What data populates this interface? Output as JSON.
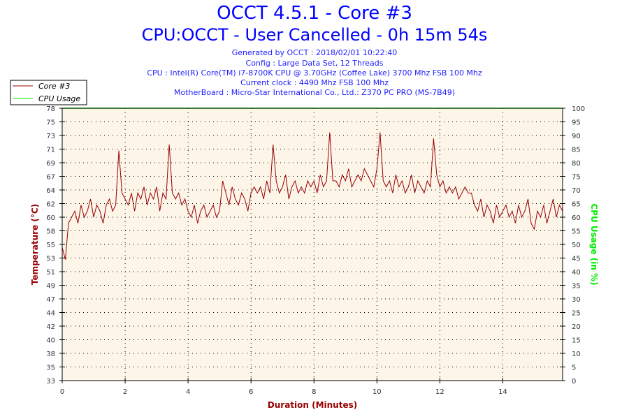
{
  "header": {
    "title": "OCCT 4.5.1 - Core #3",
    "subtitle": "CPU:OCCT - User Cancelled - 0h 15m 54s",
    "info": [
      "Generated by OCCT : 2018/02/01 10:22:40",
      "Config : Large Data Set, 12 Threads",
      "CPU : Intel(R) Core(TM) i7-8700K CPU @ 3.70GHz (Coffee Lake) 3700 Mhz FSB 100 Mhz",
      "Current clock : 4490 Mhz FSB 100 Mhz",
      "MotherBoard : Micro-Star International Co., Ltd.: Z370 PC PRO (MS-7B49)"
    ]
  },
  "colors": {
    "temp": "#990000",
    "cpu": "#00ee00",
    "title": "#0000ff",
    "plot_bg": "#fdf5e8"
  },
  "chart_data": {
    "type": "line",
    "xlabel": "Duration (Minutes)",
    "ylabel": "Temperature (°C)",
    "y2label": "CPU Usage (in %)",
    "xlim": [
      0,
      15.9
    ],
    "ylim": [
      33,
      78
    ],
    "y2lim": [
      0,
      100
    ],
    "x_ticks": [
      "0",
      "2",
      "4",
      "6",
      "8",
      "10",
      "12",
      "14"
    ],
    "y_ticks": [
      "33",
      "35",
      "38",
      "40",
      "42",
      "44",
      "47",
      "49",
      "51",
      "53",
      "55",
      "58",
      "60",
      "62",
      "64",
      "67",
      "69",
      "71",
      "73",
      "75",
      "78"
    ],
    "y2_ticks": [
      "0",
      "5",
      "10",
      "15",
      "20",
      "25",
      "30",
      "35",
      "40",
      "45",
      "50",
      "55",
      "60",
      "65",
      "70",
      "75",
      "80",
      "85",
      "90",
      "95",
      "100"
    ],
    "grid": true,
    "legend": {
      "placement": "top-left",
      "entries": [
        "Core #3",
        "CPU Usage"
      ]
    },
    "series": [
      {
        "name": "Core #3",
        "axis": "left",
        "x_start": 0,
        "x_step": 0.1,
        "values": [
          55,
          53,
          59,
          60,
          61,
          59,
          62,
          60,
          61,
          63,
          60,
          62,
          61,
          59,
          62,
          63,
          61,
          62,
          71,
          64,
          63,
          62,
          64,
          61,
          64,
          63,
          65,
          62,
          64,
          63,
          65,
          61,
          64,
          63,
          72,
          64,
          63,
          64,
          62,
          63,
          61,
          60,
          62,
          59,
          61,
          62,
          60,
          61,
          62,
          60,
          61,
          66,
          64,
          62,
          65,
          63,
          62,
          64,
          63,
          61,
          64,
          65,
          64,
          65,
          63,
          66,
          64,
          72,
          66,
          64,
          65,
          67,
          63,
          65,
          66,
          64,
          65,
          64,
          66,
          65,
          66,
          64,
          67,
          65,
          66,
          74,
          66,
          66,
          65,
          67,
          66,
          68,
          65,
          66,
          67,
          66,
          68,
          67,
          66,
          65,
          68,
          74,
          66,
          65,
          66,
          64,
          67,
          65,
          66,
          64,
          65,
          67,
          64,
          66,
          65,
          64,
          66,
          65,
          73,
          67,
          65,
          66,
          64,
          65,
          64,
          65,
          63,
          64,
          65,
          64,
          64,
          62,
          61,
          63,
          60,
          62,
          61,
          59,
          62,
          60,
          61,
          62,
          60,
          61,
          59,
          62,
          60,
          61,
          63,
          59,
          58,
          61,
          60,
          62,
          59,
          61,
          63,
          60,
          62,
          61
        ]
      },
      {
        "name": "CPU Usage",
        "axis": "right",
        "x_start": 0,
        "x_step": 15.9,
        "values": [
          100,
          100
        ]
      }
    ]
  }
}
